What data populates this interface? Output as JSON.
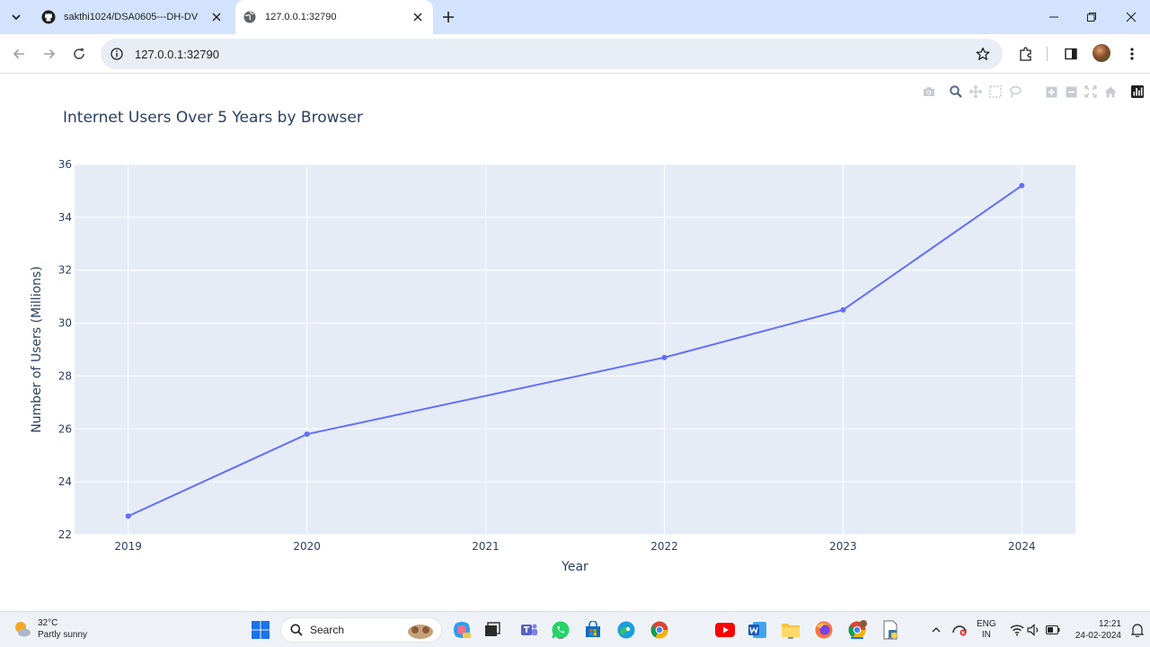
{
  "browser": {
    "tabs": [
      {
        "title": "sakthi1024/DSA0605---DH-DV",
        "active": false
      },
      {
        "title": "127.0.0.1:32790",
        "active": true
      }
    ],
    "url": "127.0.0.1:32790"
  },
  "chart_data": {
    "type": "line",
    "title": "Internet Users Over 5 Years by Browser",
    "xlabel": "Year",
    "ylabel": "Number of Users (Millions)",
    "x": [
      2019,
      2020,
      2021,
      2022,
      2023,
      2024
    ],
    "x_tick_labels": [
      "2019",
      "2020",
      "2021",
      "2022",
      "2023",
      "2024"
    ],
    "series": [
      {
        "x": [
          2019,
          2020,
          2022,
          2023,
          2024
        ],
        "values": [
          22.7,
          25.8,
          28.7,
          30.5,
          35.2
        ],
        "color": "#636efa"
      }
    ],
    "ylim": [
      22,
      36
    ],
    "y_ticks": [
      22,
      24,
      26,
      28,
      30,
      32,
      34,
      36
    ],
    "xlim": [
      2018.7,
      2024.3
    ],
    "grid": true,
    "plot_bg": "#e5ecf6"
  },
  "taskbar": {
    "weather": {
      "temp": "32°C",
      "desc": "Partly sunny"
    },
    "search_label": "Search",
    "lang": {
      "line1": "ENG",
      "line2": "IN"
    },
    "time": "12:21",
    "date": "24-02-2024"
  }
}
